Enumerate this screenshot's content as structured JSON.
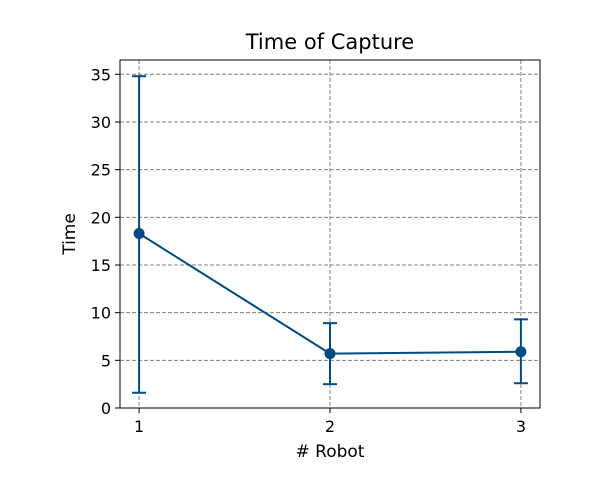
{
  "chart_data": {
    "type": "line",
    "title": "Time of Capture",
    "xlabel": "# Robot",
    "ylabel": "Time",
    "x": [
      1,
      2,
      3
    ],
    "x_ticks": [
      "1",
      "2",
      "3"
    ],
    "y_ticks": [
      "0",
      "5",
      "10",
      "15",
      "20",
      "25",
      "30",
      "35"
    ],
    "ylim": [
      0,
      36.5
    ],
    "xlim": [
      0.9,
      3.1
    ],
    "grid": true,
    "series": [
      {
        "values": [
          18.3,
          5.7,
          5.9
        ],
        "error_low": [
          1.6,
          2.5,
          2.6
        ],
        "error_high": [
          34.8,
          8.9,
          9.3
        ],
        "color": "#004c80"
      }
    ]
  }
}
